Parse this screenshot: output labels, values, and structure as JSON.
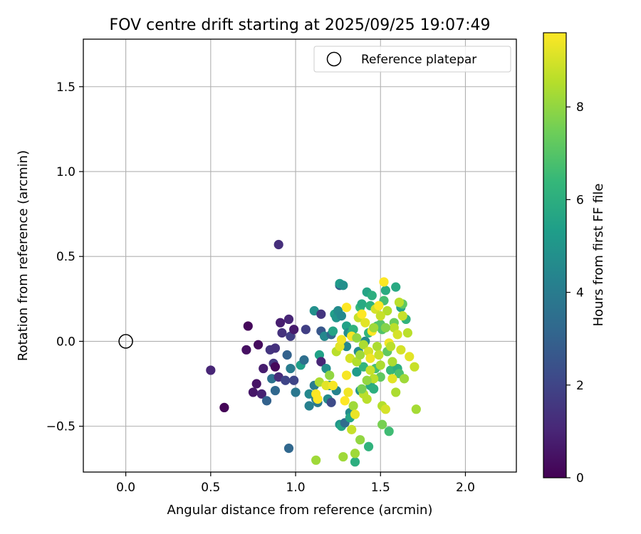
{
  "chart_data": {
    "type": "scatter",
    "title": "FOV centre drift starting at 2025/09/25 19:07:49",
    "xlabel": "Angular distance from reference (arcmin)",
    "ylabel": "Rotation from reference (arcmin)",
    "xlim": [
      -0.25,
      2.3
    ],
    "ylim": [
      -0.77,
      1.78
    ],
    "xticks": [
      0.0,
      0.5,
      1.0,
      1.5,
      2.0
    ],
    "xtick_labels": [
      "0.0",
      "0.5",
      "1.0",
      "1.5",
      "2.0"
    ],
    "yticks": [
      -0.5,
      0.0,
      0.5,
      1.0,
      1.5
    ],
    "ytick_labels": [
      "−0.5",
      "0.0",
      "0.5",
      "1.0",
      "1.5"
    ],
    "grid": true,
    "legend": {
      "label": "Reference platepar",
      "position": "top-right"
    },
    "reference_point": {
      "x": 0.0,
      "y": 0.0
    },
    "colorbar": {
      "label": "Hours from first FF file",
      "range": [
        0,
        9.6
      ],
      "ticks": [
        0,
        2,
        4,
        6,
        8
      ],
      "tick_labels": [
        "0",
        "2",
        "4",
        "6",
        "8"
      ],
      "colormap": [
        "#440154",
        "#482878",
        "#3e4989",
        "#31688e",
        "#26828e",
        "#1f9e89",
        "#35b779",
        "#6ece58",
        "#b5de2b",
        "#fde725"
      ]
    },
    "points": [
      [
        0.9,
        0.57,
        1.3
      ],
      [
        0.5,
        -0.17,
        1.0
      ],
      [
        0.58,
        -0.39,
        0.1
      ],
      [
        0.72,
        0.09,
        0.2
      ],
      [
        0.71,
        -0.05,
        0.4
      ],
      [
        0.78,
        -0.02,
        0.3
      ],
      [
        0.75,
        -0.3,
        0.6
      ],
      [
        0.77,
        -0.25,
        0.5
      ],
      [
        0.81,
        -0.16,
        0.8
      ],
      [
        0.8,
        -0.31,
        0.9
      ],
      [
        0.83,
        -0.35,
        3.0
      ],
      [
        0.85,
        -0.05,
        1.5
      ],
      [
        0.88,
        -0.04,
        1.4
      ],
      [
        0.87,
        -0.13,
        1.6
      ],
      [
        0.86,
        -0.22,
        3.6
      ],
      [
        0.88,
        -0.29,
        3.2
      ],
      [
        0.88,
        -0.15,
        0.2
      ],
      [
        0.91,
        0.11,
        0.8
      ],
      [
        0.92,
        0.05,
        1.4
      ],
      [
        0.9,
        -0.21,
        1.2
      ],
      [
        0.95,
        -0.08,
        3.0
      ],
      [
        0.94,
        -0.23,
        2.0
      ],
      [
        0.96,
        0.13,
        1.0
      ],
      [
        0.97,
        0.03,
        1.8
      ],
      [
        0.99,
        0.07,
        0.7
      ],
      [
        0.96,
        -0.63,
        3.2
      ],
      [
        0.97,
        -0.16,
        4.0
      ],
      [
        0.99,
        -0.23,
        2.0
      ],
      [
        1.0,
        -0.3,
        3.8
      ],
      [
        1.03,
        -0.14,
        5.4
      ],
      [
        1.05,
        -0.11,
        3.5
      ],
      [
        1.06,
        0.07,
        1.8
      ],
      [
        1.08,
        -0.31,
        4.5
      ],
      [
        1.08,
        -0.38,
        4.2
      ],
      [
        1.11,
        -0.26,
        4.0
      ],
      [
        1.11,
        0.18,
        4.8
      ],
      [
        1.12,
        -0.34,
        4.1
      ],
      [
        1.13,
        -0.36,
        3.9
      ],
      [
        1.14,
        -0.08,
        5.5
      ],
      [
        1.15,
        0.16,
        1.5
      ],
      [
        1.15,
        0.06,
        2.6
      ],
      [
        1.15,
        -0.12,
        1.0
      ],
      [
        1.17,
        0.03,
        4.5
      ],
      [
        1.18,
        -0.16,
        4.8
      ],
      [
        1.19,
        -0.34,
        4.6
      ],
      [
        1.2,
        -0.26,
        4.8
      ],
      [
        1.21,
        -0.36,
        2.2
      ],
      [
        1.21,
        0.04,
        3.2
      ],
      [
        1.22,
        0.06,
        5.6
      ],
      [
        1.23,
        0.16,
        5.4
      ],
      [
        1.24,
        0.14,
        5.0
      ],
      [
        1.24,
        -0.29,
        4.3
      ],
      [
        1.25,
        0.18,
        4.6
      ],
      [
        1.26,
        0.33,
        2.8
      ],
      [
        1.26,
        0.34,
        5.2
      ],
      [
        1.27,
        0.15,
        4.5
      ],
      [
        1.28,
        0.33,
        4.8
      ],
      [
        1.26,
        -0.49,
        5.0
      ],
      [
        1.27,
        -0.5,
        5.6
      ],
      [
        1.29,
        -0.48,
        3.4
      ],
      [
        1.3,
        -0.03,
        4.5
      ],
      [
        1.3,
        0.09,
        5.5
      ],
      [
        1.31,
        0.05,
        4.6
      ],
      [
        1.32,
        -0.42,
        4.6
      ],
      [
        1.32,
        -0.45,
        5.6
      ],
      [
        1.33,
        0.05,
        5.8
      ],
      [
        1.34,
        0.07,
        6.2
      ],
      [
        1.35,
        -0.71,
        6.0
      ],
      [
        1.36,
        -0.18,
        5.2
      ],
      [
        1.37,
        -0.06,
        4.6
      ],
      [
        1.38,
        0.2,
        6.4
      ],
      [
        1.38,
        -0.29,
        5.0
      ],
      [
        1.39,
        0.22,
        5.8
      ],
      [
        1.4,
        -0.15,
        6.3
      ],
      [
        1.41,
        0.0,
        4.6
      ],
      [
        1.42,
        0.29,
        5.6
      ],
      [
        1.43,
        0.05,
        6.3
      ],
      [
        1.43,
        -0.62,
        6.2
      ],
      [
        1.44,
        0.21,
        6.2
      ],
      [
        1.44,
        -0.26,
        5.8
      ],
      [
        1.45,
        0.27,
        6.0
      ],
      [
        1.46,
        -0.28,
        6.0
      ],
      [
        1.47,
        -0.16,
        6.7
      ],
      [
        1.48,
        0.09,
        6.8
      ],
      [
        1.5,
        0.1,
        7.0
      ],
      [
        1.5,
        -0.21,
        7.2
      ],
      [
        1.51,
        0.07,
        6.9
      ],
      [
        1.52,
        0.24,
        6.7
      ],
      [
        1.53,
        0.3,
        5.9
      ],
      [
        1.54,
        -0.06,
        7.2
      ],
      [
        1.55,
        -0.53,
        6.6
      ],
      [
        1.56,
        -0.17,
        6.4
      ],
      [
        1.58,
        0.11,
        7.4
      ],
      [
        1.59,
        0.32,
        5.8
      ],
      [
        1.6,
        -0.16,
        6.0
      ],
      [
        1.61,
        -0.19,
        6.8
      ],
      [
        1.62,
        0.2,
        5.6
      ],
      [
        1.63,
        0.22,
        7.2
      ],
      [
        1.65,
        0.13,
        6.2
      ],
      [
        1.12,
        -0.7,
        8.2
      ],
      [
        1.13,
        -0.34,
        9.6
      ],
      [
        1.12,
        -0.31,
        9.6
      ],
      [
        1.14,
        -0.24,
        8.4
      ],
      [
        1.18,
        -0.26,
        9.2
      ],
      [
        1.2,
        -0.2,
        8.0
      ],
      [
        1.22,
        -0.26,
        9.5
      ],
      [
        1.24,
        -0.06,
        8.6
      ],
      [
        1.26,
        -0.03,
        9.2
      ],
      [
        1.27,
        0.01,
        9.4
      ],
      [
        1.28,
        -0.68,
        8.2
      ],
      [
        1.29,
        -0.35,
        9.6
      ],
      [
        1.3,
        -0.2,
        9.5
      ],
      [
        1.3,
        0.2,
        9.6
      ],
      [
        1.31,
        -0.3,
        9.4
      ],
      [
        1.32,
        -0.1,
        9.0
      ],
      [
        1.33,
        0.03,
        9.5
      ],
      [
        1.33,
        -0.52,
        8.8
      ],
      [
        1.34,
        -0.38,
        8.2
      ],
      [
        1.35,
        -0.66,
        8.2
      ],
      [
        1.35,
        -0.43,
        9.3
      ],
      [
        1.36,
        -0.12,
        8.5
      ],
      [
        1.37,
        0.14,
        8.8
      ],
      [
        1.38,
        -0.58,
        8.0
      ],
      [
        1.38,
        -0.08,
        8.2
      ],
      [
        1.39,
        0.16,
        9.6
      ],
      [
        1.4,
        -0.31,
        8.6
      ],
      [
        1.4,
        -0.02,
        8.4
      ],
      [
        1.41,
        0.11,
        9.2
      ],
      [
        1.42,
        -0.34,
        8.6
      ],
      [
        1.43,
        -0.06,
        9.0
      ],
      [
        1.44,
        -0.17,
        8.8
      ],
      [
        1.45,
        0.06,
        9.6
      ],
      [
        1.46,
        -0.22,
        8.6
      ],
      [
        1.47,
        0.19,
        9.0
      ],
      [
        1.48,
        -0.03,
        8.4
      ],
      [
        1.49,
        0.21,
        9.6
      ],
      [
        1.5,
        -0.14,
        8.4
      ],
      [
        1.51,
        -0.38,
        8.5
      ],
      [
        1.51,
        -0.49,
        7.6
      ],
      [
        1.52,
        0.35,
        9.6
      ],
      [
        1.53,
        -0.4,
        9.0
      ],
      [
        1.54,
        0.18,
        8.5
      ],
      [
        1.55,
        -0.01,
        9.4
      ],
      [
        1.56,
        -0.03,
        8.6
      ],
      [
        1.57,
        -0.22,
        9.2
      ],
      [
        1.58,
        0.08,
        8.6
      ],
      [
        1.59,
        -0.3,
        8.4
      ],
      [
        1.6,
        0.04,
        9.0
      ],
      [
        1.61,
        0.23,
        8.6
      ],
      [
        1.62,
        -0.05,
        9.0
      ],
      [
        1.63,
        0.15,
        8.8
      ],
      [
        1.64,
        -0.22,
        8.2
      ],
      [
        1.66,
        0.05,
        8.6
      ],
      [
        1.67,
        -0.09,
        9.2
      ],
      [
        1.7,
        -0.15,
        8.8
      ],
      [
        1.71,
        -0.4,
        8.3
      ],
      [
        1.46,
        0.08,
        8.2
      ],
      [
        1.44,
        -0.1,
        9.4
      ],
      [
        1.49,
        -0.08,
        8.8
      ],
      [
        1.53,
        0.08,
        7.8
      ],
      [
        1.36,
        0.02,
        8.0
      ],
      [
        1.42,
        -0.23,
        8.0
      ],
      [
        1.39,
        -0.28,
        7.6
      ],
      [
        1.57,
        -0.12,
        8.4
      ],
      [
        1.5,
        0.15,
        8.8
      ]
    ]
  }
}
